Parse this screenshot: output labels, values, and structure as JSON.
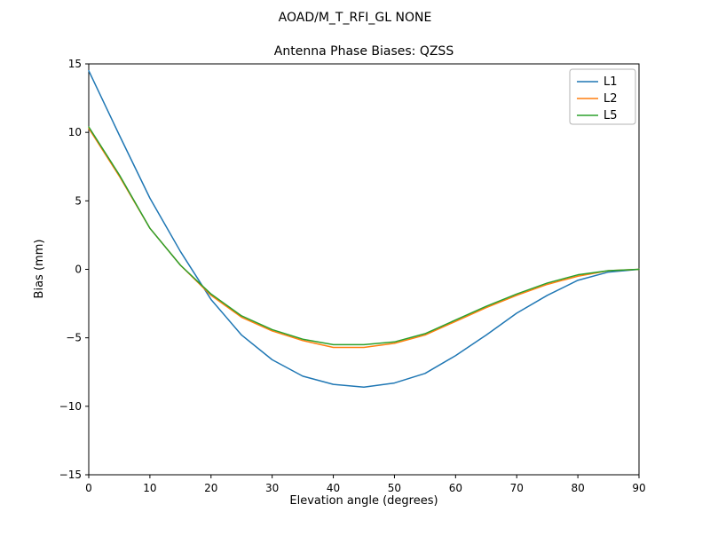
{
  "chart_data": {
    "type": "line",
    "title": "AOAD/M_T_RFI_GL NONE",
    "subtitle": "Antenna Phase Biases: QZSS",
    "xlabel": "Elevation angle (degrees)",
    "ylabel": "Bias (mm)",
    "xlim": [
      0,
      90
    ],
    "ylim": [
      -15,
      15
    ],
    "x_ticks": [
      0,
      10,
      20,
      30,
      40,
      50,
      60,
      70,
      80,
      90
    ],
    "y_ticks": [
      -15,
      -10,
      -5,
      0,
      5,
      10,
      15
    ],
    "grid": false,
    "legend": {
      "position": "upper right",
      "labels": [
        "L1",
        "L2",
        "L5"
      ]
    },
    "x": [
      0,
      5,
      10,
      15,
      20,
      25,
      30,
      35,
      40,
      45,
      50,
      55,
      60,
      65,
      70,
      75,
      80,
      85,
      90
    ],
    "series": [
      {
        "name": "L1",
        "color": "#1f77b4",
        "values": [
          14.5,
          9.8,
          5.2,
          1.3,
          -2.2,
          -4.8,
          -6.6,
          -7.8,
          -8.4,
          -8.6,
          -8.3,
          -7.6,
          -6.3,
          -4.8,
          -3.2,
          -1.9,
          -0.8,
          -0.2,
          0.0
        ]
      },
      {
        "name": "L2",
        "color": "#ff7f0e",
        "values": [
          10.3,
          6.8,
          3.0,
          0.3,
          -1.9,
          -3.5,
          -4.5,
          -5.2,
          -5.7,
          -5.7,
          -5.4,
          -4.8,
          -3.8,
          -2.8,
          -1.9,
          -1.1,
          -0.5,
          -0.1,
          0.0
        ]
      },
      {
        "name": "L5",
        "color": "#2ca02c",
        "values": [
          10.4,
          6.9,
          3.0,
          0.3,
          -1.8,
          -3.4,
          -4.4,
          -5.1,
          -5.5,
          -5.5,
          -5.3,
          -4.7,
          -3.7,
          -2.7,
          -1.8,
          -1.0,
          -0.4,
          -0.1,
          0.0
        ]
      }
    ]
  }
}
